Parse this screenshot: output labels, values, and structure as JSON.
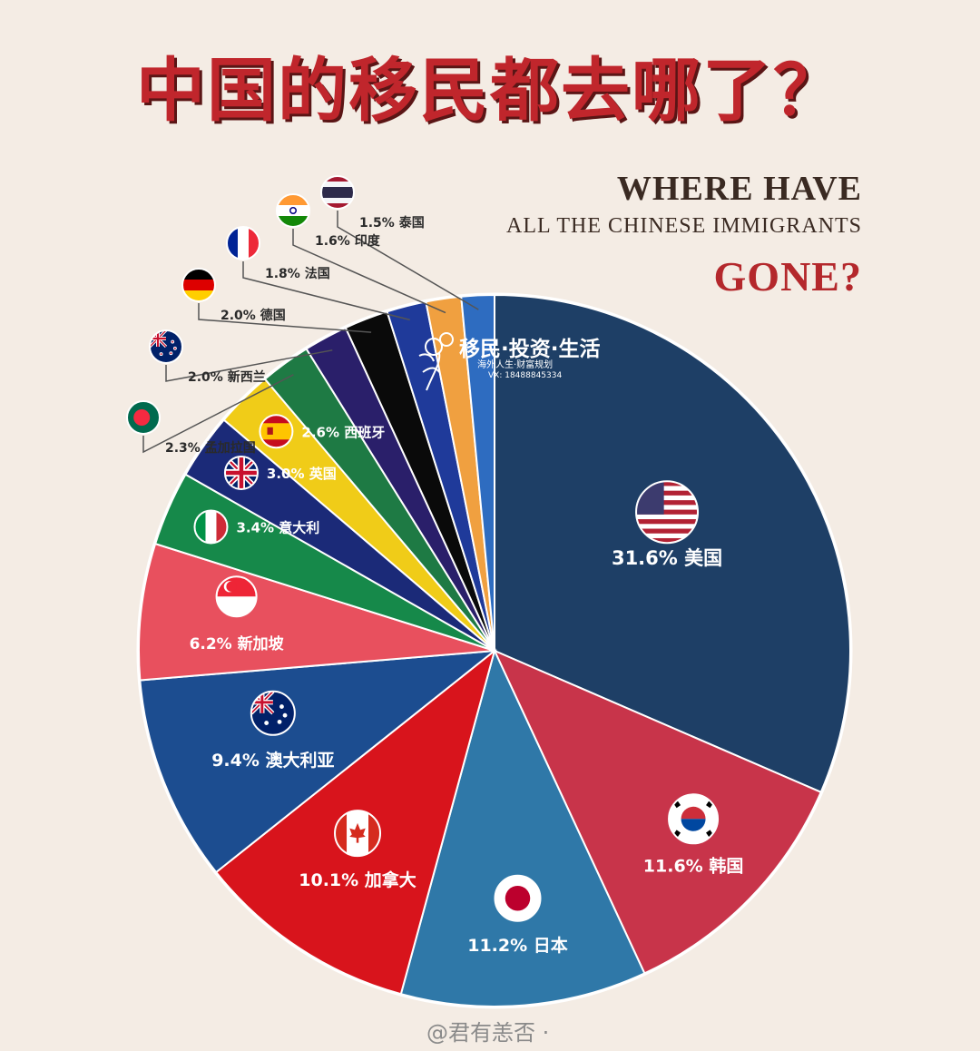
{
  "title_zh": "中国的移民都去哪了？",
  "subtitle": {
    "line1": "WHERE HAVE",
    "line2": "ALL THE CHINESE IMMIGRANTS",
    "line3": "GONE?"
  },
  "logo": {
    "text": "移民·投资·生活",
    "sub": "海外人生·财富规划",
    "contact": "VX: 18488845334"
  },
  "watermark": "@君有恙否 ·",
  "chart_data": {
    "type": "pie",
    "slices": [
      {
        "label": "31.6% 美国",
        "country": "美国",
        "value": 31.6,
        "color": "#1e3f66",
        "flag": "usa-flag-icon"
      },
      {
        "label": "11.6% 韩国",
        "country": "韩国",
        "value": 11.6,
        "color": "#c8344a",
        "flag": "korea-flag-icon"
      },
      {
        "label": "11.2% 日本",
        "country": "日本",
        "value": 11.2,
        "color": "#2f78a8",
        "flag": "japan-flag-icon"
      },
      {
        "label": "10.1% 加拿大",
        "country": "加拿大",
        "value": 10.1,
        "color": "#d8141c",
        "flag": "canada-flag-icon"
      },
      {
        "label": "9.4% 澳大利亚",
        "country": "澳大利亚",
        "value": 9.4,
        "color": "#1c4d90",
        "flag": "australia-flag-icon"
      },
      {
        "label": "6.2% 新加坡",
        "country": "新加坡",
        "value": 6.2,
        "color": "#e8505e",
        "flag": "singapore-flag-icon"
      },
      {
        "label": "3.4% 意大利",
        "country": "意大利",
        "value": 3.4,
        "color": "#16894a",
        "flag": "italy-flag-icon"
      },
      {
        "label": "3.0% 英国",
        "country": "英国",
        "value": 3.0,
        "color": "#1b2a78",
        "flag": "uk-flag-icon"
      },
      {
        "label": "2.6% 西班牙",
        "country": "西班牙",
        "value": 2.6,
        "color": "#f0cc18",
        "flag": "spain-flag-icon"
      },
      {
        "label": "2.3% 孟加拉国",
        "country": "孟加拉国",
        "value": 2.3,
        "color": "#1e7a44",
        "flag": "bangladesh-flag-icon"
      },
      {
        "label": "2.0% 新西兰",
        "country": "新西兰",
        "value": 2.0,
        "color": "#2a1f6a",
        "flag": "new-zealand-flag-icon"
      },
      {
        "label": "2.0% 德国",
        "country": "德国",
        "value": 2.0,
        "color": "#0a0a0a",
        "flag": "germany-flag-icon"
      },
      {
        "label": "1.8% 法国",
        "country": "法国",
        "value": 1.8,
        "color": "#1f3a9a",
        "flag": "france-flag-icon"
      },
      {
        "label": "1.6% 印度",
        "country": "印度",
        "value": 1.6,
        "color": "#f0a040",
        "flag": "india-flag-icon"
      },
      {
        "label": "1.5% 泰国",
        "country": "泰国",
        "value": 1.5,
        "color": "#2e6cc0",
        "flag": "thailand-flag-icon"
      }
    ]
  }
}
